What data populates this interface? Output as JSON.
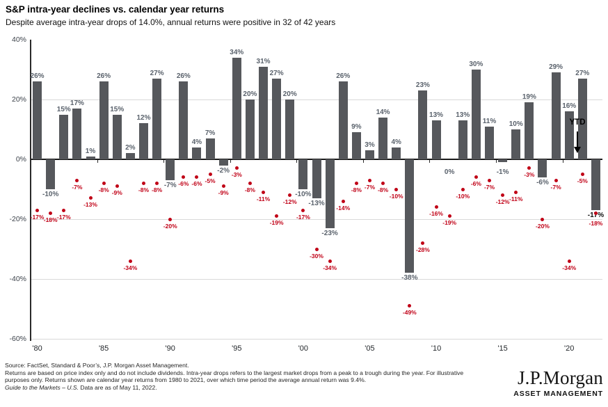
{
  "header": {
    "title": "S&P intra-year declines vs. calendar year returns",
    "subtitle": "Despite average intra-year drops of 14.0%, annual returns were positive in 32 of 42 years"
  },
  "chart_data": {
    "type": "bar",
    "title": "S&P intra-year declines vs. calendar year returns",
    "categories": [
      1980,
      1981,
      1982,
      1983,
      1984,
      1985,
      1986,
      1987,
      1988,
      1989,
      1990,
      1991,
      1992,
      1993,
      1994,
      1995,
      1996,
      1997,
      1998,
      1999,
      2000,
      2001,
      2002,
      2003,
      2004,
      2005,
      2006,
      2007,
      2008,
      2009,
      2010,
      2011,
      2012,
      2013,
      2014,
      2015,
      2016,
      2017,
      2018,
      2019,
      2020,
      2021,
      "YTD"
    ],
    "series": [
      {
        "name": "calendar-year-return",
        "type": "bar",
        "color": "#56585c",
        "values": [
          26,
          -10,
          15,
          17,
          1,
          26,
          15,
          2,
          12,
          27,
          -7,
          26,
          4,
          7,
          -2,
          34,
          20,
          31,
          27,
          20,
          -10,
          -13,
          -23,
          26,
          9,
          3,
          14,
          4,
          -38,
          23,
          13,
          0,
          13,
          30,
          11,
          -1,
          10,
          19,
          -6,
          29,
          16,
          27,
          -17
        ]
      },
      {
        "name": "intra-year-decline",
        "type": "scatter",
        "color": "#c00016",
        "values": [
          -17,
          -18,
          -17,
          -7,
          -13,
          -8,
          -9,
          -34,
          -8,
          -8,
          -20,
          -6,
          -6,
          -5,
          -9,
          -3,
          -8,
          -11,
          -19,
          -12,
          -17,
          -30,
          -34,
          -14,
          -8,
          -7,
          -8,
          -10,
          -49,
          -28,
          -16,
          -19,
          -10,
          -6,
          -7,
          -12,
          -11,
          -3,
          -20,
          -7,
          -34,
          -5,
          -18
        ]
      }
    ],
    "ylim": [
      -60,
      40
    ],
    "ytick_values": [
      40,
      20,
      0,
      -20,
      -40,
      -60
    ],
    "ytick_labels": [
      "40%",
      "20%",
      "0%",
      "-20%",
      "-40%",
      "-60%"
    ],
    "xtick_indices": [
      0,
      5,
      10,
      15,
      20,
      25,
      30,
      35,
      40
    ],
    "xtick_labels": [
      "'80",
      "'85",
      "'90",
      "'95",
      "'00",
      "'05",
      "'10",
      "'15",
      "'20"
    ],
    "grid": "horizontal-light",
    "legend": "none",
    "label_suffix": "%",
    "annotations": {
      "ytd_label": "YTD"
    }
  },
  "footnote": {
    "source": "Source: FactSet, Standard & Poor’s, J.P. Morgan Asset Management.",
    "body": "Returns are based on price index only and do not include dividends. Intra-year drops refers to the largest market drops from a peak to a trough during the year. For illustrative purposes only. Returns shown are calendar year returns from 1980 to 2021, over which time period the average annual return was 9.4%.",
    "gttm_italic": "Guide to the Markets – U.S.",
    "gttm_rest": " Data are as of May 11, 2022."
  },
  "logo": {
    "brand": "J.P.Morgan",
    "division": "ASSET MANAGEMENT"
  }
}
